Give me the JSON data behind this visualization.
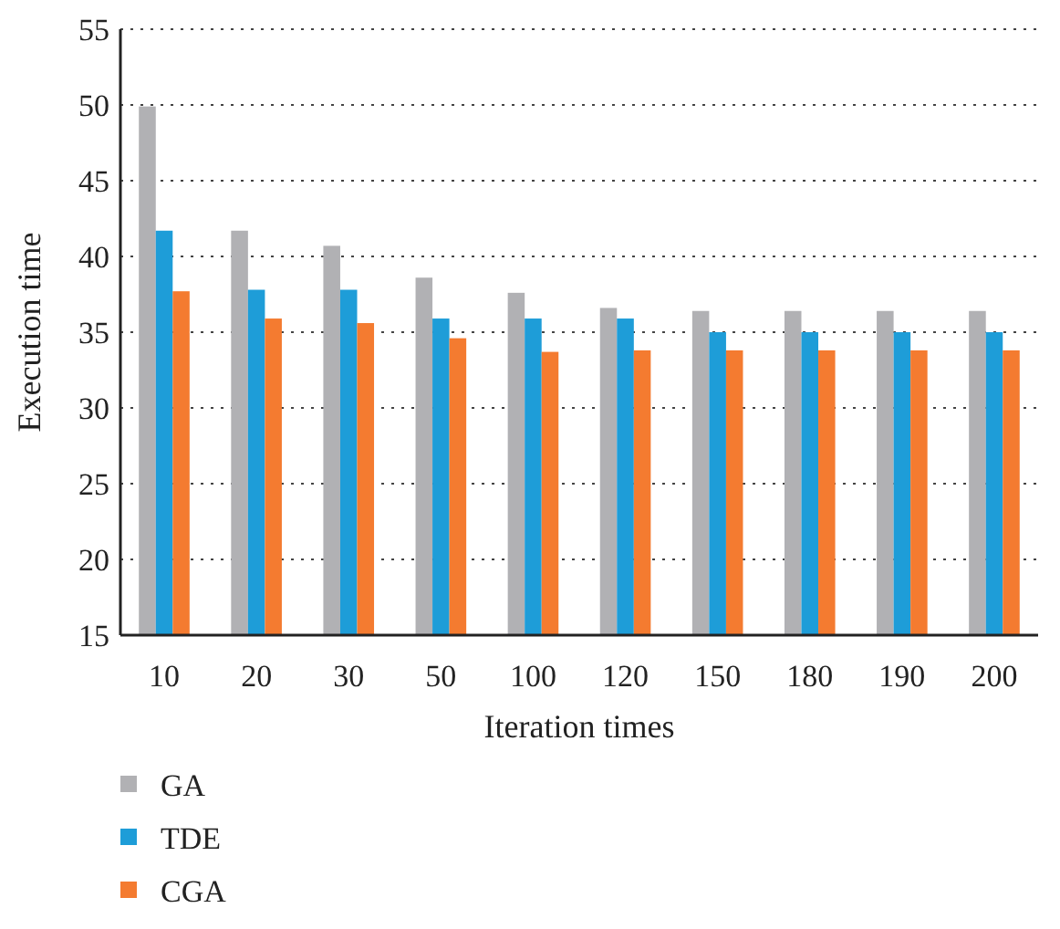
{
  "chart_data": {
    "type": "bar",
    "xlabel": "Iteration times",
    "ylabel": "Execution time",
    "categories": [
      "10",
      "20",
      "30",
      "50",
      "100",
      "120",
      "150",
      "180",
      "190",
      "200"
    ],
    "series": [
      {
        "name": "GA",
        "color": "#b1b1b4",
        "values": [
          49.9,
          41.7,
          40.7,
          38.6,
          37.6,
          36.6,
          36.4,
          36.4,
          36.4,
          36.4
        ]
      },
      {
        "name": "TDE",
        "color": "#1e9dd8",
        "values": [
          41.7,
          37.8,
          37.8,
          35.9,
          35.9,
          35.9,
          35.0,
          35.0,
          35.0,
          35.0
        ]
      },
      {
        "name": "CGA",
        "color": "#f47b30",
        "values": [
          37.7,
          35.9,
          35.6,
          34.6,
          33.7,
          33.8,
          33.8,
          33.8,
          33.8,
          33.8
        ]
      }
    ],
    "ylim": [
      15,
      55
    ],
    "yticks": [
      15,
      20,
      25,
      30,
      35,
      40,
      45,
      50,
      55
    ],
    "grid": "y",
    "legend": "bottom left"
  }
}
